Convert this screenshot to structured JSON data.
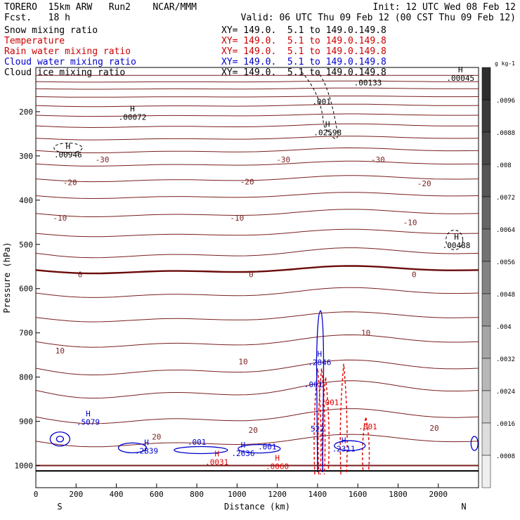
{
  "header": {
    "model": "TORERO  15km ARW   Run2    NCAR/MMM",
    "forecast": "Fcst.   18 h",
    "init": "Init: 12 UTC Wed 08 Feb 12",
    "valid": "Valid: 06 UTC Thu 09 Feb 12 (00 CST Thu 09 Feb 12)"
  },
  "legend": [
    {
      "name": "Snow mixing ratio",
      "color": "#000000",
      "xy": "XY= 149.0.  5.1 to 149.0.149.8"
    },
    {
      "name": "Temperature",
      "color": "#cc0000",
      "xy": "XY= 149.0.  5.1 to 149.0.149.8"
    },
    {
      "name": "Rain water mixing ratio",
      "color": "#cc0000",
      "xy": "XY= 149.0.  5.1 to 149.0.149.8"
    },
    {
      "name": "Cloud water mixing ratio",
      "color": "#0000cc",
      "xy": "XY= 149.0.  5.1 to 149.0.149.8"
    },
    {
      "name": "Cloud ice mixing ratio",
      "color": "#000000",
      "xy": "XY= 149.0.  5.1 to 149.0.149.8"
    }
  ],
  "colors": {
    "temperature": "#7a1e1e",
    "zero_isotherm": "#6a0a0a",
    "rain": "#e00000",
    "cloud_water": "#0000cc",
    "ice": "#000000"
  },
  "chart_data": {
    "type": "contour-cross-section",
    "xlabel": "Distance (km)",
    "ylabel": "Pressure (hPa)",
    "xlim": [
      0,
      2200
    ],
    "ylim": [
      1050,
      100
    ],
    "x_ticks": [
      0,
      200,
      400,
      600,
      800,
      1000,
      1200,
      1400,
      1600,
      1800,
      2000
    ],
    "y_ticks": [
      200,
      300,
      400,
      500,
      600,
      700,
      800,
      900,
      1000
    ],
    "x_left_label": "S",
    "x_right_label": "N",
    "temperature_contours": [
      {
        "pressure": 1000,
        "label": "",
        "bend": 0
      },
      {
        "pressure": 945,
        "label": "20",
        "bend": 10
      },
      {
        "pressure": 890,
        "label": "20",
        "bend": 12
      },
      {
        "pressure": 830,
        "label": "",
        "bend": 14
      },
      {
        "pressure": 780,
        "label": "",
        "bend": 12
      },
      {
        "pressure": 720,
        "label": "10",
        "bend": 10
      },
      {
        "pressure": 665,
        "label": "10",
        "bend": 8
      },
      {
        "pressure": 610,
        "label": "",
        "bend": 8
      },
      {
        "pressure": 558,
        "label": "0",
        "bend": 6,
        "thick": true
      },
      {
        "pressure": 520,
        "label": "",
        "bend": 8
      },
      {
        "pressure": 475,
        "label": "",
        "bend": 6
      },
      {
        "pressure": 430,
        "label": "-10",
        "bend": 6
      },
      {
        "pressure": 390,
        "label": "",
        "bend": 5
      },
      {
        "pressure": 352,
        "label": "-20",
        "bend": 5
      },
      {
        "pressure": 318,
        "label": "",
        "bend": 4
      },
      {
        "pressure": 288,
        "label": "-30",
        "bend": 4
      },
      {
        "pressure": 260,
        "label": "",
        "bend": 3
      },
      {
        "pressure": 232,
        "label": "",
        "bend": 3
      },
      {
        "pressure": 208,
        "label": "",
        "bend": 2
      },
      {
        "pressure": 186,
        "label": "",
        "bend": 2
      },
      {
        "pressure": 166,
        "label": "",
        "bend": 1
      },
      {
        "pressure": 148,
        "label": "",
        "bend": 1
      },
      {
        "pressure": 132,
        "label": "",
        "bend": 1
      },
      {
        "pressure": 118,
        "label": "",
        "bend": 0
      }
    ],
    "temperature_labels": [
      {
        "x": 120,
        "p": 740,
        "text": "10"
      },
      {
        "x": 1640,
        "p": 700,
        "text": "10"
      },
      {
        "x": 1030,
        "p": 765,
        "text": "10"
      },
      {
        "x": 1080,
        "p": 920,
        "text": "20"
      },
      {
        "x": 600,
        "p": 935,
        "text": "20"
      },
      {
        "x": 1980,
        "p": 915,
        "text": "20"
      },
      {
        "x": 220,
        "p": 568,
        "text": "0"
      },
      {
        "x": 1070,
        "p": 568,
        "text": "0"
      },
      {
        "x": 1880,
        "p": 568,
        "text": "0"
      },
      {
        "x": 120,
        "p": 440,
        "text": "-10"
      },
      {
        "x": 1000,
        "p": 440,
        "text": "-10"
      },
      {
        "x": 1860,
        "p": 450,
        "text": "-10"
      },
      {
        "x": 170,
        "p": 360,
        "text": "-20"
      },
      {
        "x": 1050,
        "p": 358,
        "text": "-20"
      },
      {
        "x": 1930,
        "p": 362,
        "text": "-20"
      },
      {
        "x": 330,
        "p": 308,
        "text": "-30"
      },
      {
        "x": 1230,
        "p": 308,
        "text": "-30"
      },
      {
        "x": 1700,
        "p": 308,
        "text": "-30"
      }
    ],
    "maxima_labels": [
      {
        "x": 260,
        "p": 905,
        "text": "H",
        "value": ".5079",
        "color": "cloud_water"
      },
      {
        "x": 800,
        "p": 950,
        "text": "",
        "value": ".001",
        "color": "cloud_water"
      },
      {
        "x": 550,
        "p": 970,
        "text": "H",
        "value": ".2B39",
        "color": "cloud_water"
      },
      {
        "x": 1030,
        "p": 975,
        "text": "H",
        "value": ".2636",
        "color": "cloud_water"
      },
      {
        "x": 1150,
        "p": 960,
        "text": "",
        "value": ".001",
        "color": "cloud_water"
      },
      {
        "x": 1410,
        "p": 770,
        "text": "H",
        "value": ".2846",
        "color": "cloud_water"
      },
      {
        "x": 1380,
        "p": 820,
        "text": "",
        "value": ".001",
        "color": "cloud_water"
      },
      {
        "x": 1530,
        "p": 965,
        "text": "H",
        "value": ".2311",
        "color": "cloud_water"
      },
      {
        "x": 1400,
        "p": 920,
        "text": "",
        "value": "522",
        "color": "cloud_water"
      },
      {
        "x": 1460,
        "p": 860,
        "text": "",
        "value": ".001",
        "color": "rain"
      },
      {
        "x": 1650,
        "p": 915,
        "text": "",
        "value": ".001",
        "color": "rain"
      },
      {
        "x": 900,
        "p": 995,
        "text": "H",
        "value": ".0031",
        "color": "rain"
      },
      {
        "x": 1200,
        "p": 1005,
        "text": "H",
        "value": ".0060",
        "color": "rain"
      },
      {
        "x": 160,
        "p": 300,
        "text": "H",
        "value": ".00946",
        "color": "ice"
      },
      {
        "x": 480,
        "p": 215,
        "text": "H",
        "value": ".00072",
        "color": "ice"
      },
      {
        "x": 1450,
        "p": 250,
        "text": "H",
        "value": ".02598",
        "color": "ice"
      },
      {
        "x": 1420,
        "p": 180,
        "text": "",
        "value": ".001",
        "color": "ice"
      },
      {
        "x": 1650,
        "p": 137,
        "text": "",
        "value": ".00133",
        "color": "ice"
      },
      {
        "x": 2110,
        "p": 127,
        "text": "H",
        "value": ".00045",
        "color": "ice"
      },
      {
        "x": 2090,
        "p": 505,
        "text": "H",
        "value": ".00488",
        "color": "ice"
      }
    ],
    "rain_contours": [
      {
        "x": 1400,
        "p_top": 780,
        "p_bottom": 1020
      },
      {
        "x": 1420,
        "p_top": 780,
        "p_bottom": 1020
      },
      {
        "x": 1440,
        "p_top": 800,
        "p_bottom": 1010
      },
      {
        "x": 1530,
        "p_top": 770,
        "p_bottom": 1020
      },
      {
        "x": 1640,
        "p_top": 890,
        "p_bottom": 1010
      }
    ],
    "colorbar": {
      "unit": "g kg-1",
      "ticks": [
        ".0096",
        ".0088",
        ".008",
        ".0072",
        ".0064",
        ".0056",
        ".0048",
        ".004",
        ".0032",
        ".0024",
        ".0016",
        ".0008"
      ],
      "shades": [
        "#2e2e2e",
        "#3a3a3a",
        "#474747",
        "#555555",
        "#646464",
        "#737373",
        "#838383",
        "#949494",
        "#a6a6a6",
        "#b8b8b8",
        "#cbcbcb",
        "#dddddd",
        "#efefef"
      ]
    }
  }
}
